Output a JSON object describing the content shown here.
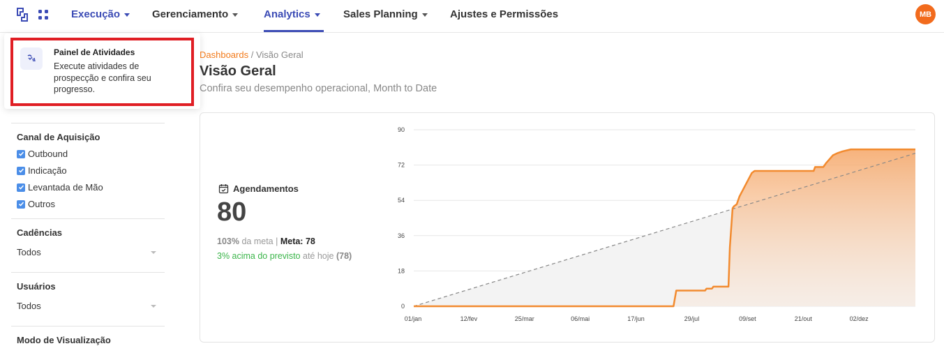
{
  "nav": {
    "items": [
      {
        "label": "Execução"
      },
      {
        "label": "Gerenciamento"
      },
      {
        "label": "Analytics"
      },
      {
        "label": "Sales Planning"
      },
      {
        "label": "Ajustes e Permissões"
      }
    ],
    "avatar_initials": "MB"
  },
  "dropdown": {
    "title": "Painel de Atividades",
    "description": "Execute atividades de prospecção e confira seu progresso."
  },
  "filters": {
    "canal": {
      "title": "Canal de Aquisição",
      "options": [
        {
          "label": "Outbound",
          "checked": true
        },
        {
          "label": "Indicação",
          "checked": true
        },
        {
          "label": "Levantada de Mão",
          "checked": true
        },
        {
          "label": "Outros",
          "checked": true
        }
      ]
    },
    "cadencias": {
      "title": "Cadências",
      "value": "Todos"
    },
    "usuarios": {
      "title": "Usuários",
      "value": "Todos"
    },
    "modo": {
      "title": "Modo de Visualização"
    }
  },
  "header": {
    "breadcrumb_link": "Dashboards",
    "breadcrumb_sep": " / ",
    "breadcrumb_current": "Visão Geral",
    "title": "Visão Geral",
    "subtitle": "Confira seu desempenho operacional, Month to Date"
  },
  "kpi": {
    "label": "Agendamentos",
    "value": "80",
    "pct": "103%",
    "pct_text": " da meta | ",
    "meta_label": "Meta: 78",
    "ahead_text": "3% acima do previsto",
    "ahead_suffix": " até hoje ",
    "ahead_value": "(78)"
  },
  "colors": {
    "brand_blue": "#3b4bb5",
    "orange": "#f28a2e",
    "green": "#3bb54a",
    "highlight_red": "#e01e24"
  },
  "chart_data": {
    "type": "area",
    "ylim": [
      0,
      90
    ],
    "yticks": [
      0,
      18,
      36,
      54,
      72,
      90
    ],
    "x_labels": [
      "01/jan",
      "12/fev",
      "25/mar",
      "06/mai",
      "17/jun",
      "29/jul",
      "09/set",
      "21/out",
      "02/dez"
    ],
    "x_days_total": 365,
    "series": [
      {
        "name": "Agendamentos",
        "color": "#f28a2e",
        "x_day": [
          0,
          189,
          191,
          212,
          213,
          217,
          218,
          229,
          230,
          232,
          233,
          235,
          237,
          243,
          246,
          248,
          291,
          292,
          298,
          299,
          300,
          305,
          308,
          312,
          318,
          322,
          365
        ],
        "values": [
          0,
          0,
          8,
          8,
          9,
          9,
          10,
          10,
          30,
          50,
          51,
          52,
          56,
          64,
          68,
          69,
          69,
          71,
          71,
          72,
          73,
          77,
          78,
          79,
          80,
          80,
          80
        ]
      },
      {
        "name": "Meta",
        "style": "dashed",
        "x_day": [
          0,
          365
        ],
        "values": [
          0,
          78
        ]
      }
    ]
  }
}
